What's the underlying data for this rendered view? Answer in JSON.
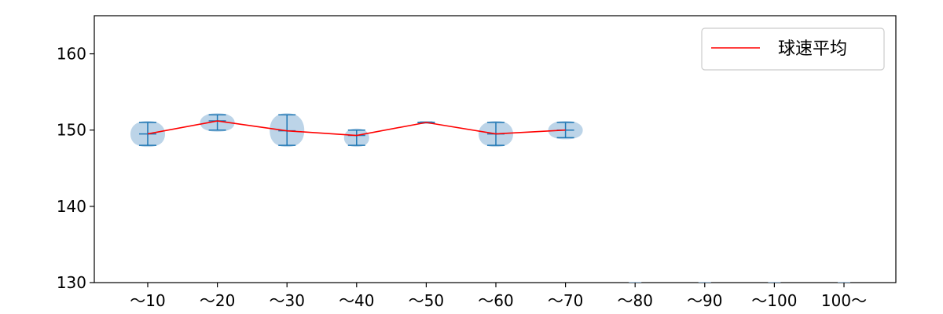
{
  "chart_data": {
    "type": "violin",
    "categories": [
      "～10",
      "～20",
      "～30",
      "～40",
      "～50",
      "～60",
      "～70",
      "～80",
      "～90",
      "～100",
      "100～"
    ],
    "ylim": [
      130,
      165
    ],
    "yticks": [
      "130",
      "140",
      "150",
      "160"
    ],
    "ytick_values": [
      130,
      140,
      150,
      160
    ],
    "title": "",
    "xlabel": "",
    "ylabel": "",
    "grid": false,
    "legend": {
      "position": "top-right",
      "entries": [
        "球速平均"
      ]
    },
    "series": [
      {
        "name": "球速平均",
        "style": "line",
        "values": [
          149.5,
          151.2,
          149.9,
          149.3,
          151.0,
          149.5,
          150.0,
          null,
          null,
          null,
          null
        ]
      }
    ],
    "distributions": [
      {
        "min": 148,
        "max": 151,
        "median": 149.5
      },
      {
        "min": 150,
        "max": 152,
        "median": 151.2
      },
      {
        "min": 148,
        "max": 152,
        "median": 149.9
      },
      {
        "min": 148,
        "max": 150,
        "median": 149.3
      },
      {
        "min": 151,
        "max": 151,
        "median": 151.0
      },
      {
        "min": 148,
        "max": 151,
        "median": 149.5
      },
      {
        "min": 149,
        "max": 151,
        "median": 150.0
      },
      null,
      null,
      null,
      null
    ],
    "colors": {
      "line": "#ff0000",
      "violin_fill": "#a6c6e0",
      "whisker": "#1f77b4"
    }
  }
}
